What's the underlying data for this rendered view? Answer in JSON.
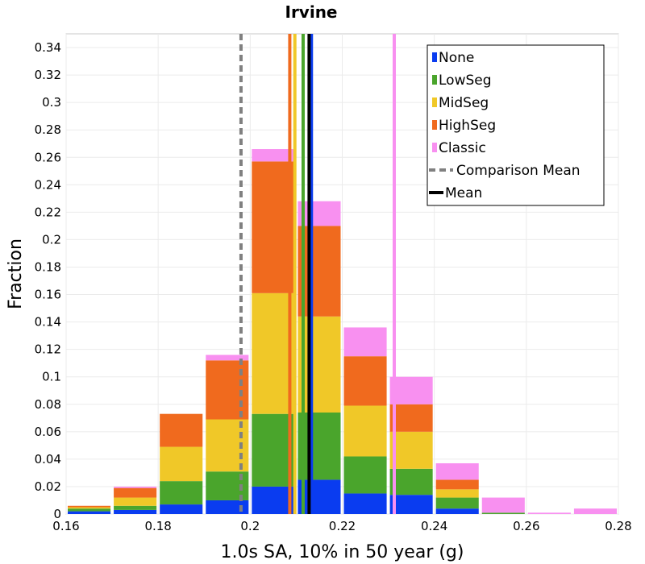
{
  "chart_data": {
    "type": "bar",
    "stacked": true,
    "title": "Irvine",
    "xlabel": "1.0s SA, 10% in 50 year (g)",
    "ylabel": "Fraction",
    "xlim": [
      0.16,
      0.28
    ],
    "ylim": [
      0,
      0.35
    ],
    "xticks": [
      "0.16",
      "0.18",
      "0.2",
      "0.22",
      "0.24",
      "0.26",
      "0.28"
    ],
    "yticks": [
      "0",
      "0.02",
      "0.04",
      "0.06",
      "0.08",
      "0.1",
      "0.12",
      "0.14",
      "0.16",
      "0.18",
      "0.2",
      "0.22",
      "0.24",
      "0.26",
      "0.28",
      "0.3",
      "0.32",
      "0.34"
    ],
    "grid": true,
    "legend_position": "top-right",
    "bin_width": 0.01,
    "bins": [
      0.16,
      0.17,
      0.18,
      0.19,
      0.2,
      0.21,
      0.22,
      0.23,
      0.24,
      0.25,
      0.26,
      0.27
    ],
    "series": [
      {
        "name": "None",
        "color": "#0a3cf0",
        "values": [
          0.002,
          0.003,
          0.007,
          0.01,
          0.02,
          0.025,
          0.015,
          0.014,
          0.004,
          0.0,
          0.0,
          0.0
        ]
      },
      {
        "name": "LowSeg",
        "color": "#4aa52c",
        "values": [
          0.002,
          0.003,
          0.017,
          0.021,
          0.053,
          0.049,
          0.027,
          0.019,
          0.008,
          0.001,
          0.0,
          0.0
        ]
      },
      {
        "name": "MidSeg",
        "color": "#f0c828",
        "values": [
          0.001,
          0.006,
          0.025,
          0.038,
          0.088,
          0.07,
          0.037,
          0.027,
          0.006,
          0.0,
          0.0,
          0.0
        ]
      },
      {
        "name": "HighSeg",
        "color": "#f06a1e",
        "values": [
          0.001,
          0.007,
          0.024,
          0.043,
          0.096,
          0.066,
          0.036,
          0.02,
          0.007,
          0.0,
          0.0,
          0.0
        ]
      },
      {
        "name": "Classic",
        "color": "#f890f0",
        "values": [
          0.0,
          0.001,
          0.0,
          0.004,
          0.009,
          0.018,
          0.021,
          0.02,
          0.012,
          0.011,
          0.001,
          0.004
        ]
      }
    ],
    "vertical_lines": [
      {
        "name": "None",
        "x": 0.2133,
        "color": "#0a3cf0",
        "style": "solid"
      },
      {
        "name": "LowSeg",
        "x": 0.2115,
        "color": "#4aa52c",
        "style": "solid"
      },
      {
        "name": "MidSeg",
        "x": 0.2097,
        "color": "#f0c828",
        "style": "solid"
      },
      {
        "name": "HighSeg",
        "x": 0.2086,
        "color": "#f06a1e",
        "style": "solid"
      },
      {
        "name": "Classic",
        "x": 0.2313,
        "color": "#f890f0",
        "style": "solid"
      },
      {
        "name": "Comparison Mean",
        "x": 0.198,
        "color": "#808080",
        "style": "dashed"
      },
      {
        "name": "Mean",
        "x": 0.2128,
        "color": "#000000",
        "style": "solid"
      }
    ],
    "legend": [
      {
        "label": "None",
        "color": "#0a3cf0",
        "kind": "swatch"
      },
      {
        "label": "LowSeg",
        "color": "#4aa52c",
        "kind": "swatch"
      },
      {
        "label": "MidSeg",
        "color": "#f0c828",
        "kind": "swatch"
      },
      {
        "label": "HighSeg",
        "color": "#f06a1e",
        "kind": "swatch"
      },
      {
        "label": "Classic",
        "color": "#f890f0",
        "kind": "swatch"
      },
      {
        "label": "Comparison Mean",
        "color": "#808080",
        "kind": "dashed"
      },
      {
        "label": "Mean",
        "color": "#000000",
        "kind": "line"
      }
    ]
  }
}
